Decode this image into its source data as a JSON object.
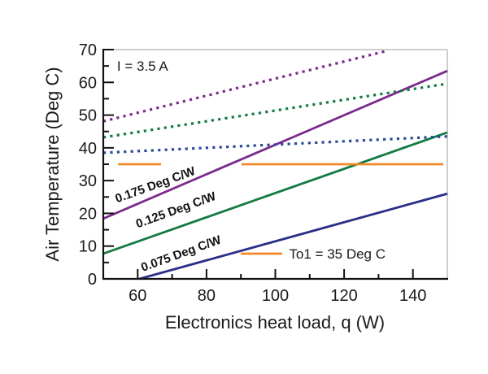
{
  "chart_data": {
    "type": "line",
    "title": "",
    "xlabel": "Electronics heat load, q (W)",
    "ylabel": "Air Temperature (Deg C)",
    "xlim": [
      50,
      150
    ],
    "ylim": [
      0,
      70
    ],
    "xticks": [
      60,
      80,
      100,
      120,
      140
    ],
    "xtick_labels": [
      "60",
      "80",
      "100",
      "120",
      "140"
    ],
    "yticks": [
      0,
      10,
      20,
      30,
      40,
      50,
      60,
      70
    ],
    "ytick_labels": [
      "0",
      "10",
      "20",
      "30",
      "40",
      "50",
      "60",
      "70"
    ],
    "grid": false,
    "annotations": [
      {
        "text": "I = 3.5 A",
        "x": 54,
        "y": 65
      },
      {
        "text": "0.175 Deg C/W",
        "series": "solid-0.175"
      },
      {
        "text": "0.125 Deg C/W",
        "series": "solid-0.125"
      },
      {
        "text": "0.075 Deg C/W",
        "series": "solid-0.075"
      }
    ],
    "legend": {
      "placement": "bottom-right",
      "entries": [
        {
          "label": "To1 = 35 Deg C",
          "color": "#f0892a"
        }
      ]
    },
    "series": [
      {
        "name": "0.175 Deg C/W (solid)",
        "style": "solid",
        "color": "#7b2a8c",
        "x": [
          50,
          150
        ],
        "y": [
          18.4,
          63.5
        ]
      },
      {
        "name": "0.125 Deg C/W (solid)",
        "style": "solid",
        "color": "#137a43",
        "x": [
          50,
          150
        ],
        "y": [
          7.7,
          44.7
        ]
      },
      {
        "name": "0.075 Deg C/W (solid)",
        "style": "solid",
        "color": "#2b2f8a",
        "x": [
          60.5,
          150
        ],
        "y": [
          0,
          26.0
        ]
      },
      {
        "name": "0.175 Deg C/W (dotted)",
        "style": "dotted",
        "color": "#7b2a8c",
        "x": [
          50,
          132
        ],
        "y": [
          48.1,
          69.5
        ]
      },
      {
        "name": "0.125 Deg C/W (dotted)",
        "style": "dotted",
        "color": "#137a43",
        "x": [
          50,
          150
        ],
        "y": [
          43.2,
          59.6
        ]
      },
      {
        "name": "0.075 Deg C/W (dotted)",
        "style": "dotted",
        "color": "#2b4a9a",
        "x": [
          50,
          150
        ],
        "y": [
          38.5,
          43.5
        ]
      },
      {
        "name": "To1 = 35 Deg C (segment 1)",
        "style": "solid",
        "color": "#f0892a",
        "x": [
          54.3,
          66.8
        ],
        "y": [
          35,
          35
        ]
      },
      {
        "name": "To1 = 35 Deg C (segment 2)",
        "style": "solid",
        "color": "#f0892a",
        "x": [
          90.2,
          148.8
        ],
        "y": [
          35,
          35
        ]
      }
    ],
    "line_label_positions": [
      {
        "text": "0.175 Deg C/W",
        "x": 54,
        "y": 23.2
      },
      {
        "text": "0.125 Deg C/W",
        "x": 60,
        "y": 15.5
      },
      {
        "text": "0.075 Deg C/W",
        "x": 61.5,
        "y": 2.2
      }
    ],
    "legend_sample": {
      "x": [
        90,
        102
      ],
      "y": 7.7
    },
    "legend_text_pos": {
      "x": 104,
      "y": 7.7
    }
  }
}
